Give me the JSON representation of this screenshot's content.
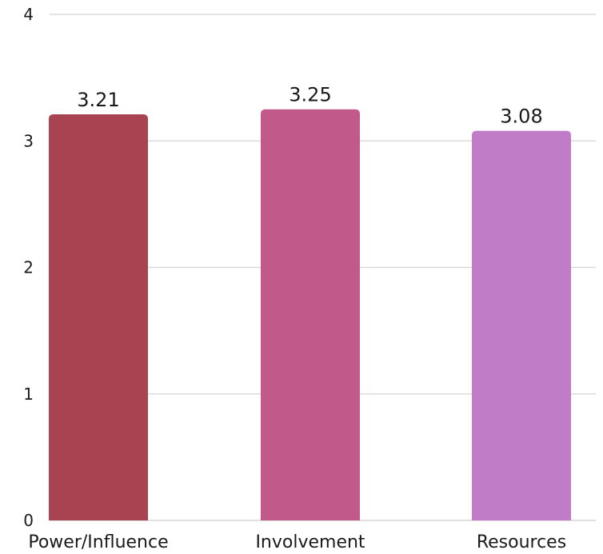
{
  "chart_data": {
    "type": "bar",
    "title": "",
    "xlabel": "",
    "ylabel": "",
    "categories": [
      "Power/Influence",
      "Involvement",
      "Resources"
    ],
    "values": [
      3.21,
      3.25,
      3.08
    ],
    "value_labels": [
      "3.21",
      "3.25",
      "3.08"
    ],
    "colors": [
      "#a84452",
      "#c15a8b",
      "#c17cc8"
    ],
    "ylim": [
      0,
      4
    ],
    "yticks": [
      "0",
      "1",
      "2",
      "3",
      "4"
    ],
    "grid": true,
    "legend": "none"
  }
}
